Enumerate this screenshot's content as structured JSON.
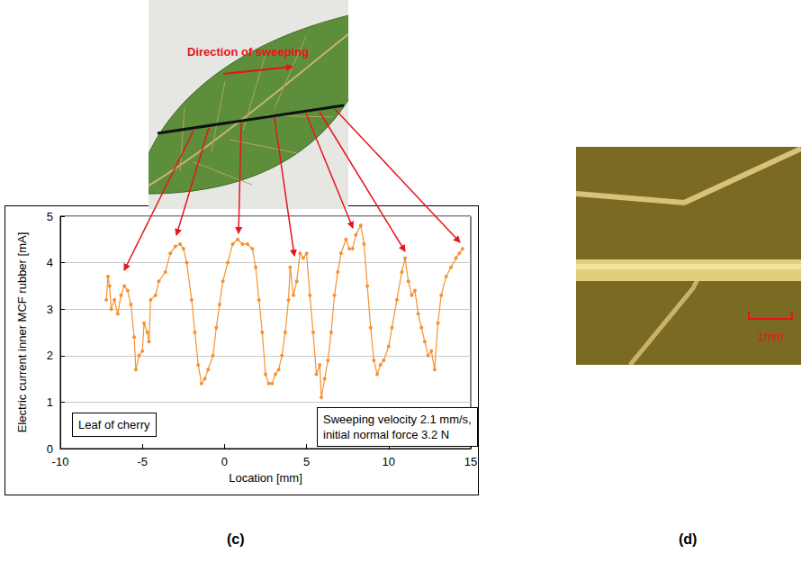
{
  "chart_data": {
    "type": "line",
    "panel_label": "(c)",
    "x_label": "Location [mm]",
    "y_label": "Electric current inner MCF rubber [mA]",
    "annotations": [
      "Leaf of cherry",
      "Sweeping velocity 2.1 mm/s,\ninitial normal force 3.2 N"
    ],
    "x": [
      -7.2,
      -7.1,
      -7.0,
      -6.9,
      -6.7,
      -6.5,
      -6.3,
      -6.1,
      -5.9,
      -5.7,
      -5.5,
      -5.4,
      -5.2,
      -5.0,
      -4.9,
      -4.7,
      -4.6,
      -4.5,
      -4.2,
      -4.0,
      -3.6,
      -3.3,
      -3.0,
      -2.7,
      -2.5,
      -2.3,
      -2.0,
      -1.8,
      -1.6,
      -1.4,
      -1.2,
      -1.0,
      -0.7,
      -0.5,
      -0.3,
      -0.1,
      0.2,
      0.5,
      0.8,
      1.1,
      1.4,
      1.7,
      1.9,
      2.1,
      2.3,
      2.5,
      2.7,
      2.9,
      3.1,
      3.3,
      3.5,
      3.7,
      3.9,
      4.0,
      4.2,
      4.4,
      4.6,
      4.8,
      5.0,
      5.2,
      5.4,
      5.6,
      5.8,
      5.9,
      6.1,
      6.3,
      6.5,
      6.7,
      6.9,
      7.1,
      7.4,
      7.6,
      7.8,
      8.0,
      8.3,
      8.5,
      8.7,
      8.9,
      9.1,
      9.3,
      9.5,
      9.7,
      10.0,
      10.2,
      10.5,
      10.8,
      11.0,
      11.2,
      11.4,
      11.6,
      11.8,
      12.0,
      12.2,
      12.4,
      12.6,
      12.8,
      13.0,
      13.2,
      13.5,
      13.8,
      14.1,
      14.3,
      14.5
    ],
    "series": [
      {
        "color": "#f5922f",
        "marker": "circle",
        "line_style": "solid",
        "values": [
          3.2,
          3.7,
          3.5,
          3.0,
          3.2,
          2.9,
          3.3,
          3.5,
          3.4,
          3.1,
          2.4,
          1.7,
          2.0,
          2.1,
          2.7,
          2.5,
          2.3,
          3.2,
          3.3,
          3.6,
          3.8,
          4.2,
          4.35,
          4.4,
          4.3,
          4.0,
          3.2,
          2.5,
          1.8,
          1.4,
          1.5,
          1.7,
          2.0,
          2.6,
          3.1,
          3.6,
          4.0,
          4.4,
          4.5,
          4.4,
          4.4,
          4.3,
          3.9,
          3.2,
          2.5,
          1.6,
          1.4,
          1.4,
          1.6,
          1.7,
          2.0,
          2.5,
          3.2,
          3.9,
          3.3,
          3.6,
          4.2,
          4.1,
          4.2,
          3.3,
          2.5,
          1.6,
          1.8,
          1.1,
          1.5,
          1.9,
          2.5,
          3.3,
          3.8,
          4.2,
          4.5,
          4.3,
          4.3,
          4.6,
          4.8,
          4.4,
          3.5,
          2.6,
          1.9,
          1.6,
          1.8,
          1.9,
          2.2,
          2.6,
          3.2,
          3.8,
          4.1,
          3.6,
          3.3,
          3.4,
          2.9,
          2.6,
          2.3,
          2.0,
          2.1,
          1.7,
          2.7,
          3.3,
          3.7,
          3.9,
          4.1,
          4.2,
          4.3
        ]
      }
    ],
    "xlim": [
      -10,
      15
    ],
    "xticks": [
      -10,
      -5,
      0,
      5,
      10,
      15
    ],
    "ylim": [
      0,
      5
    ],
    "yticks": [
      0,
      1,
      2,
      3,
      4,
      5
    ],
    "grid": true
  },
  "photos": {
    "leaf": {
      "annotation": "Direction of sweeping"
    },
    "detail": {
      "panel_label": "(d)",
      "scale_bar_label": "1mm"
    }
  }
}
